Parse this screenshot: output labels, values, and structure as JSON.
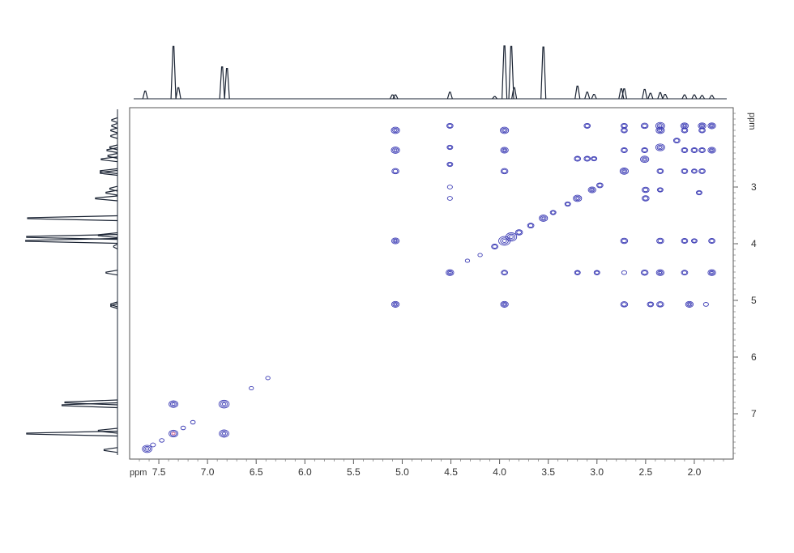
{
  "chart_data": {
    "type": "scatter",
    "subtype": "2D NMR COSY contour plot with 1D projections",
    "x_axis": {
      "unit_label": "ppm",
      "range": [
        7.8,
        1.6
      ],
      "reversed": true,
      "ticks": [
        7.5,
        7.0,
        6.5,
        6.0,
        5.5,
        5.0,
        4.5,
        4.0,
        3.5,
        3.0,
        2.5,
        2.0
      ],
      "tick_labels": [
        "7.5",
        "7.0",
        "6.5",
        "6.0",
        "5.5",
        "5.0",
        "4.5",
        "4.0",
        "3.5",
        "3.0",
        "2.5",
        "2.0"
      ]
    },
    "y_axis": {
      "unit_label": "ppm",
      "range": [
        1.6,
        7.8
      ],
      "reversed": false,
      "position": "right",
      "ticks": [
        3,
        4,
        5,
        6,
        7
      ],
      "tick_labels": [
        "3",
        "4",
        "5",
        "6",
        "7"
      ]
    },
    "grid": false,
    "colors": {
      "positive": "#3d3db5",
      "negative": "#d45b8a",
      "spectrum": "#1a2333",
      "frame": "#555555"
    },
    "projection_peaks": [
      {
        "ppm": 7.64,
        "h": 0.14
      },
      {
        "ppm": 7.35,
        "h": 0.95
      },
      {
        "ppm": 7.3,
        "h": 0.2
      },
      {
        "ppm": 6.85,
        "h": 0.58
      },
      {
        "ppm": 6.8,
        "h": 0.55
      },
      {
        "ppm": 5.1,
        "h": 0.07
      },
      {
        "ppm": 5.07,
        "h": 0.07
      },
      {
        "ppm": 4.51,
        "h": 0.12
      },
      {
        "ppm": 4.05,
        "h": 0.04
      },
      {
        "ppm": 3.95,
        "h": 0.96
      },
      {
        "ppm": 3.88,
        "h": 0.95
      },
      {
        "ppm": 3.85,
        "h": 0.2
      },
      {
        "ppm": 3.55,
        "h": 0.94
      },
      {
        "ppm": 3.2,
        "h": 0.23
      },
      {
        "ppm": 3.1,
        "h": 0.12
      },
      {
        "ppm": 3.03,
        "h": 0.08
      },
      {
        "ppm": 2.75,
        "h": 0.18
      },
      {
        "ppm": 2.72,
        "h": 0.18
      },
      {
        "ppm": 2.51,
        "h": 0.17
      },
      {
        "ppm": 2.45,
        "h": 0.1
      },
      {
        "ppm": 2.35,
        "h": 0.11
      },
      {
        "ppm": 2.3,
        "h": 0.08
      },
      {
        "ppm": 2.1,
        "h": 0.07
      },
      {
        "ppm": 2.0,
        "h": 0.07
      },
      {
        "ppm": 1.92,
        "h": 0.06
      },
      {
        "ppm": 1.82,
        "h": 0.06
      }
    ],
    "cross_peaks": [
      {
        "x": 7.62,
        "y": 7.62,
        "size": 1.1
      },
      {
        "x": 7.56,
        "y": 7.55,
        "size": 0.4
      },
      {
        "x": 7.47,
        "y": 7.47,
        "size": 0.35
      },
      {
        "x": 7.35,
        "y": 7.35,
        "size": 1.0,
        "neg": true
      },
      {
        "x": 7.35,
        "y": 6.83,
        "size": 1.0
      },
      {
        "x": 7.25,
        "y": 7.25,
        "size": 0.35
      },
      {
        "x": 7.15,
        "y": 7.15,
        "size": 0.35
      },
      {
        "x": 6.83,
        "y": 7.35,
        "size": 1.1
      },
      {
        "x": 6.83,
        "y": 6.83,
        "size": 1.2
      },
      {
        "x": 6.55,
        "y": 6.55,
        "size": 0.3
      },
      {
        "x": 6.38,
        "y": 6.37,
        "size": 0.3
      },
      {
        "x": 5.07,
        "y": 2.0,
        "size": 0.9
      },
      {
        "x": 5.07,
        "y": 2.35,
        "size": 0.9
      },
      {
        "x": 5.07,
        "y": 2.72,
        "size": 0.7
      },
      {
        "x": 5.07,
        "y": 3.95,
        "size": 0.8
      },
      {
        "x": 5.07,
        "y": 5.07,
        "size": 0.8
      },
      {
        "x": 4.51,
        "y": 1.92,
        "size": 0.6
      },
      {
        "x": 4.51,
        "y": 2.3,
        "size": 0.5
      },
      {
        "x": 4.51,
        "y": 2.6,
        "size": 0.5
      },
      {
        "x": 4.51,
        "y": 3.0,
        "size": 0.4
      },
      {
        "x": 4.51,
        "y": 3.2,
        "size": 0.4
      },
      {
        "x": 4.51,
        "y": 4.51,
        "size": 0.8
      },
      {
        "x": 4.33,
        "y": 4.3,
        "size": 0.3
      },
      {
        "x": 4.2,
        "y": 4.2,
        "size": 0.3
      },
      {
        "x": 4.05,
        "y": 4.05,
        "size": 0.6
      },
      {
        "x": 3.95,
        "y": 2.0,
        "size": 0.9
      },
      {
        "x": 3.95,
        "y": 2.35,
        "size": 0.8
      },
      {
        "x": 3.95,
        "y": 2.72,
        "size": 0.7
      },
      {
        "x": 3.95,
        "y": 3.95,
        "size": 1.4
      },
      {
        "x": 3.88,
        "y": 3.88,
        "size": 1.3
      },
      {
        "x": 3.95,
        "y": 4.51,
        "size": 0.6
      },
      {
        "x": 3.95,
        "y": 5.07,
        "size": 0.8
      },
      {
        "x": 3.8,
        "y": 3.8,
        "size": 0.7
      },
      {
        "x": 3.68,
        "y": 3.68,
        "size": 0.6
      },
      {
        "x": 3.55,
        "y": 3.55,
        "size": 0.9
      },
      {
        "x": 3.45,
        "y": 3.45,
        "size": 0.5
      },
      {
        "x": 3.3,
        "y": 3.3,
        "size": 0.5
      },
      {
        "x": 3.2,
        "y": 2.5,
        "size": 0.6
      },
      {
        "x": 3.2,
        "y": 3.2,
        "size": 0.9
      },
      {
        "x": 3.2,
        "y": 4.51,
        "size": 0.5
      },
      {
        "x": 3.1,
        "y": 1.92,
        "size": 0.6
      },
      {
        "x": 3.1,
        "y": 2.5,
        "size": 0.6
      },
      {
        "x": 3.05,
        "y": 3.05,
        "size": 0.8
      },
      {
        "x": 3.03,
        "y": 2.5,
        "size": 0.5
      },
      {
        "x": 2.97,
        "y": 2.97,
        "size": 0.6
      },
      {
        "x": 3.0,
        "y": 4.51,
        "size": 0.5
      },
      {
        "x": 2.72,
        "y": 1.92,
        "size": 0.6
      },
      {
        "x": 2.72,
        "y": 2.0,
        "size": 0.6
      },
      {
        "x": 2.72,
        "y": 2.35,
        "size": 0.6
      },
      {
        "x": 2.72,
        "y": 2.72,
        "size": 0.9
      },
      {
        "x": 2.72,
        "y": 3.95,
        "size": 0.7
      },
      {
        "x": 2.72,
        "y": 4.51,
        "size": 0.4
      },
      {
        "x": 2.72,
        "y": 5.07,
        "size": 0.7
      },
      {
        "x": 2.51,
        "y": 1.92,
        "size": 0.7
      },
      {
        "x": 2.51,
        "y": 2.35,
        "size": 0.6
      },
      {
        "x": 2.51,
        "y": 2.51,
        "size": 0.9
      },
      {
        "x": 2.5,
        "y": 3.05,
        "size": 0.7
      },
      {
        "x": 2.5,
        "y": 3.2,
        "size": 0.7
      },
      {
        "x": 2.51,
        "y": 4.51,
        "size": 0.7
      },
      {
        "x": 2.45,
        "y": 5.07,
        "size": 0.6
      },
      {
        "x": 2.35,
        "y": 1.92,
        "size": 1.0
      },
      {
        "x": 2.35,
        "y": 2.0,
        "size": 0.9
      },
      {
        "x": 2.35,
        "y": 2.3,
        "size": 1.0
      },
      {
        "x": 2.35,
        "y": 2.72,
        "size": 0.6
      },
      {
        "x": 2.35,
        "y": 3.05,
        "size": 0.5
      },
      {
        "x": 2.35,
        "y": 3.95,
        "size": 0.7
      },
      {
        "x": 2.35,
        "y": 4.51,
        "size": 0.8
      },
      {
        "x": 2.35,
        "y": 5.07,
        "size": 0.7
      },
      {
        "x": 2.18,
        "y": 2.18,
        "size": 0.6
      },
      {
        "x": 2.1,
        "y": 1.92,
        "size": 0.8
      },
      {
        "x": 2.1,
        "y": 2.0,
        "size": 0.6
      },
      {
        "x": 2.1,
        "y": 2.35,
        "size": 0.6
      },
      {
        "x": 2.1,
        "y": 2.72,
        "size": 0.6
      },
      {
        "x": 2.1,
        "y": 3.95,
        "size": 0.6
      },
      {
        "x": 2.1,
        "y": 4.51,
        "size": 0.6
      },
      {
        "x": 2.05,
        "y": 5.07,
        "size": 0.8
      },
      {
        "x": 2.0,
        "y": 2.72,
        "size": 0.5
      },
      {
        "x": 2.0,
        "y": 3.95,
        "size": 0.5
      },
      {
        "x": 2.0,
        "y": 2.35,
        "size": 0.6
      },
      {
        "x": 1.92,
        "y": 1.92,
        "size": 0.8
      },
      {
        "x": 1.92,
        "y": 2.0,
        "size": 0.6
      },
      {
        "x": 1.95,
        "y": 3.1,
        "size": 0.5
      },
      {
        "x": 1.92,
        "y": 2.35,
        "size": 0.6
      },
      {
        "x": 1.92,
        "y": 2.72,
        "size": 0.6
      },
      {
        "x": 1.82,
        "y": 1.92,
        "size": 0.8
      },
      {
        "x": 1.82,
        "y": 2.35,
        "size": 0.8
      },
      {
        "x": 1.82,
        "y": 3.95,
        "size": 0.6
      },
      {
        "x": 1.82,
        "y": 4.51,
        "size": 0.8
      },
      {
        "x": 1.88,
        "y": 5.07,
        "size": 0.4
      }
    ]
  }
}
